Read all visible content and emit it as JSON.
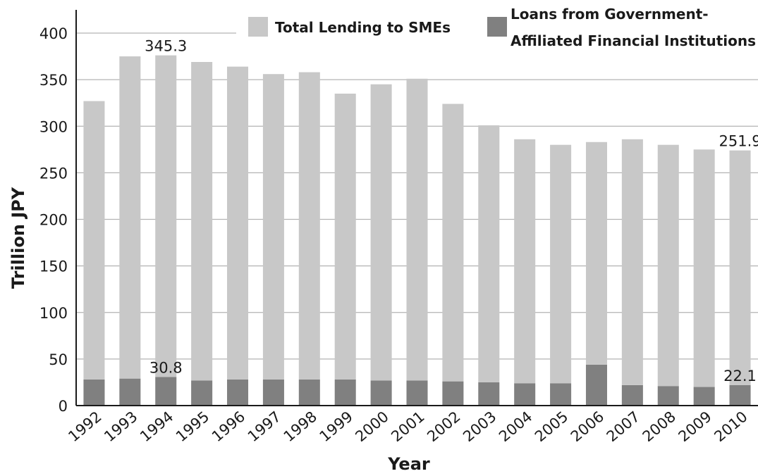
{
  "chart_data": {
    "type": "bar",
    "title": "",
    "xlabel": "Year",
    "ylabel": "Trillion JPY",
    "ylim": [
      0,
      400
    ],
    "yticks": [
      0,
      50,
      100,
      150,
      200,
      250,
      300,
      350,
      400
    ],
    "grid": true,
    "legend_position": "top-right",
    "categories": [
      "1992",
      "1993",
      "1994",
      "1995",
      "1996",
      "1997",
      "1998",
      "1999",
      "2000",
      "2001",
      "2002",
      "2003",
      "2004",
      "2005",
      "2006",
      "2007",
      "2008",
      "2009",
      "2010"
    ],
    "series": [
      {
        "name": "Total Lending to SMEs",
        "color": "#c8c8c8",
        "values": [
          299,
          346,
          345.3,
          342,
          336,
          328,
          330,
          307,
          318,
          324,
          298,
          276,
          262,
          256,
          239,
          264,
          259,
          255,
          251.9
        ]
      },
      {
        "name": "Loans from Government-Affiliated Financial Institutions",
        "color": "#808080",
        "values": [
          28,
          29,
          30.8,
          27,
          28,
          28,
          28,
          28,
          27,
          27,
          26,
          25,
          24,
          24,
          44,
          22,
          21,
          20,
          22.1
        ]
      }
    ],
    "annotations": [
      {
        "text": "345.3",
        "category": "1994",
        "series": "Total Lending to SMEs"
      },
      {
        "text": "30.8",
        "category": "1994",
        "series": "Loans from Government-Affiliated Financial Institutions"
      },
      {
        "text": "251.9",
        "category": "2010",
        "series": "Total Lending to SMEs"
      },
      {
        "text": "22.1",
        "category": "2010",
        "series": "Loans from Government-Affiliated Financial Institutions"
      }
    ],
    "legend": {
      "items": [
        {
          "lines": [
            "Total Lending to SMEs"
          ],
          "color": "#c8c8c8"
        },
        {
          "lines": [
            "Loans from Government-",
            "Affiliated Financial Institutions"
          ],
          "color": "#808080"
        }
      ]
    }
  }
}
